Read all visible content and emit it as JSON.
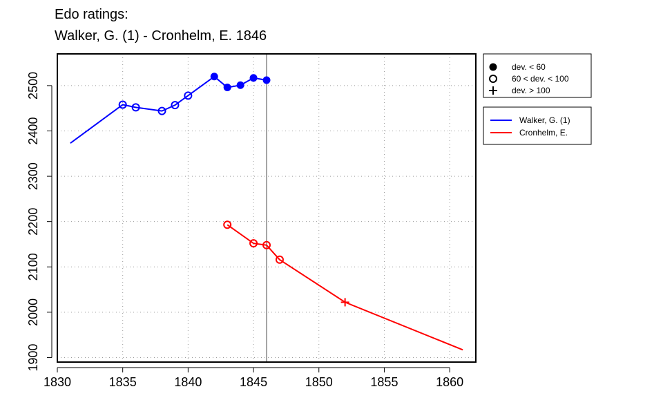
{
  "title_line1": "Edo ratings:",
  "title_line2": "Walker, G. (1) - Cronhelm, E. 1846",
  "chart_data": {
    "type": "line",
    "xlim": [
      1830,
      1862
    ],
    "ylim": [
      1890,
      2570
    ],
    "x_ticks": [
      1830,
      1835,
      1840,
      1845,
      1850,
      1855,
      1860
    ],
    "y_ticks": [
      1900,
      2000,
      2100,
      2200,
      2300,
      2400,
      2500
    ],
    "grid": true,
    "vline_x": 1846,
    "series": [
      {
        "name": "Walker, G. (1)",
        "color": "#0000ff",
        "points": [
          {
            "x": 1831,
            "y": 2373,
            "marker": "none"
          },
          {
            "x": 1835,
            "y": 2458,
            "marker": "open"
          },
          {
            "x": 1836,
            "y": 2452,
            "marker": "open"
          },
          {
            "x": 1838,
            "y": 2444,
            "marker": "open"
          },
          {
            "x": 1839,
            "y": 2457,
            "marker": "open"
          },
          {
            "x": 1840,
            "y": 2478,
            "marker": "open"
          },
          {
            "x": 1842,
            "y": 2520,
            "marker": "filled"
          },
          {
            "x": 1843,
            "y": 2496,
            "marker": "filled"
          },
          {
            "x": 1844,
            "y": 2501,
            "marker": "filled"
          },
          {
            "x": 1845,
            "y": 2517,
            "marker": "filled"
          },
          {
            "x": 1846,
            "y": 2512,
            "marker": "filled"
          }
        ]
      },
      {
        "name": "Cronhelm, E.",
        "color": "#ff0000",
        "points": [
          {
            "x": 1843,
            "y": 2193,
            "marker": "open"
          },
          {
            "x": 1845,
            "y": 2152,
            "marker": "open"
          },
          {
            "x": 1846,
            "y": 2148,
            "marker": "open"
          },
          {
            "x": 1847,
            "y": 2116,
            "marker": "open"
          },
          {
            "x": 1852,
            "y": 2022,
            "marker": "plus"
          },
          {
            "x": 1861,
            "y": 1917,
            "marker": "none"
          }
        ]
      }
    ],
    "marker_legend": [
      {
        "symbol": "filled",
        "label": "dev. < 60"
      },
      {
        "symbol": "open",
        "label": "60 < dev. < 100"
      },
      {
        "symbol": "plus",
        "label": "dev. > 100"
      }
    ],
    "legend_position": "right"
  }
}
